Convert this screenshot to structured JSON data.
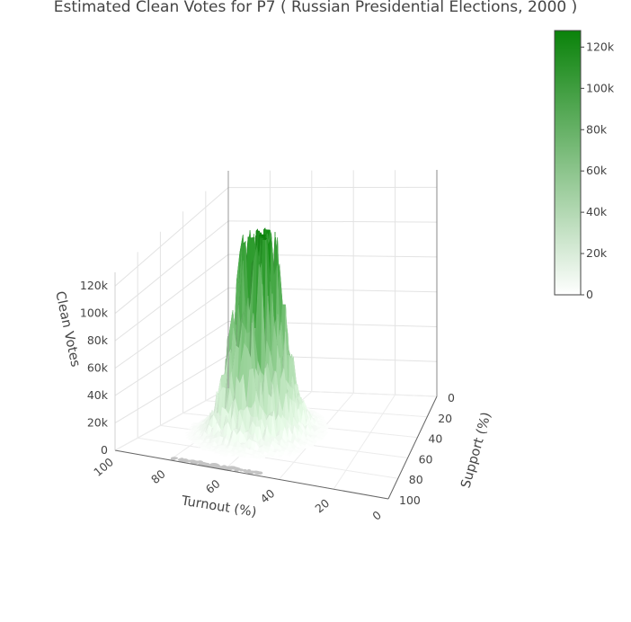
{
  "chart_data": {
    "type": "surface",
    "title": "Estimated Clean Votes for P7 ( Russian Presidential Elections, 2000 )",
    "xlabel": "Turnout (%)",
    "ylabel": "Support (%)",
    "zlabel": "Clean Votes",
    "x_ticks": [
      "100",
      "80",
      "60",
      "40",
      "20",
      "0"
    ],
    "y_ticks": [
      "0",
      "20",
      "40",
      "60",
      "80",
      "100"
    ],
    "z_ticks": [
      "0",
      "20k",
      "40k",
      "60k",
      "80k",
      "100k",
      "120k"
    ],
    "xlim": [
      0,
      100
    ],
    "ylim": [
      0,
      100
    ],
    "zlim": [
      0,
      130000
    ],
    "peak": {
      "turnout": 63,
      "support": 52,
      "votes": 128000
    },
    "spread": {
      "turnout": 8,
      "support": 10
    },
    "colorscale": [
      "#ffffff",
      "#0a820a"
    ],
    "colorbar": {
      "ticks": [
        "0",
        "20k",
        "40k",
        "60k",
        "80k",
        "100k",
        "120k"
      ],
      "values": [
        0,
        20000,
        40000,
        60000,
        80000,
        100000,
        120000
      ],
      "max": 128000
    }
  }
}
